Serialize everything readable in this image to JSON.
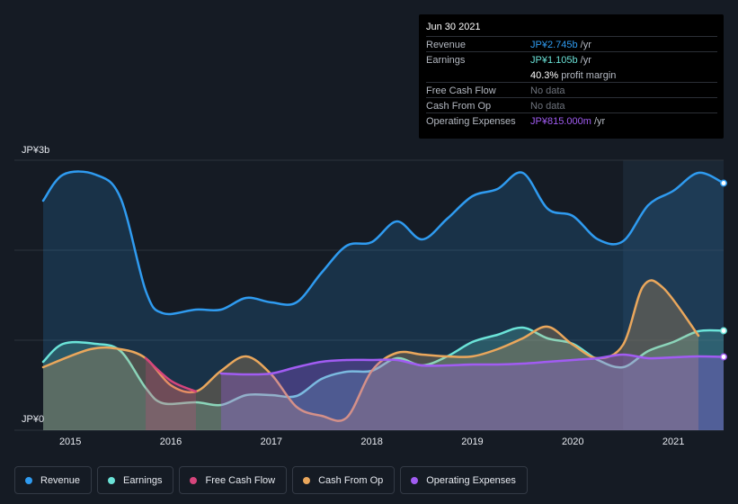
{
  "tooltip": {
    "date": "Jun 30 2021",
    "rows": [
      {
        "label": "Revenue",
        "value": "JP¥2.745b",
        "unit": "/yr",
        "color": "#2f9bf0"
      },
      {
        "label": "Earnings",
        "value": "JP¥1.105b",
        "unit": "/yr",
        "color": "#6be3d8"
      },
      {
        "label": "",
        "value": "40.3%",
        "unit": "profit margin",
        "color": "#ffffff"
      },
      {
        "label": "Free Cash Flow",
        "value": "No data",
        "unit": "",
        "color": "#6e737c"
      },
      {
        "label": "Cash From Op",
        "value": "No data",
        "unit": "",
        "color": "#6e737c"
      },
      {
        "label": "Operating Expenses",
        "value": "JP¥815.000m",
        "unit": "/yr",
        "color": "#a15cf2"
      }
    ]
  },
  "legend": [
    {
      "label": "Revenue",
      "color": "#2f9bf0"
    },
    {
      "label": "Earnings",
      "color": "#6be3d8"
    },
    {
      "label": "Free Cash Flow",
      "color": "#d6457c"
    },
    {
      "label": "Cash From Op",
      "color": "#eaa75c"
    },
    {
      "label": "Operating Expenses",
      "color": "#a15cf2"
    }
  ],
  "chart_data": {
    "type": "area",
    "title": "",
    "xlabel": "",
    "ylabel": "",
    "ylim": [
      0,
      3.0
    ],
    "xlim": [
      2014.73,
      2021.5
    ],
    "y_unit": "JP¥ billions",
    "y_tick_labels": [
      "JP¥0",
      "JP¥3b"
    ],
    "x_ticks": [
      2015,
      2016,
      2017,
      2018,
      2019,
      2020,
      2021
    ],
    "x_tick_labels": [
      "2015",
      "2016",
      "2017",
      "2018",
      "2019",
      "2020",
      "2021"
    ],
    "highlight_from": 2020.5,
    "series": [
      {
        "name": "Revenue",
        "color": "#2f9bf0",
        "x": [
          2014.73,
          2014.93,
          2015.25,
          2015.5,
          2015.75,
          2015.92,
          2016.25,
          2016.5,
          2016.75,
          2017.0,
          2017.25,
          2017.5,
          2017.75,
          2018.0,
          2018.25,
          2018.5,
          2018.75,
          2019.0,
          2019.25,
          2019.5,
          2019.75,
          2020.0,
          2020.25,
          2020.5,
          2020.75,
          2021.0,
          2021.25,
          2021.5
        ],
        "values": [
          2.55,
          2.84,
          2.84,
          2.58,
          1.55,
          1.3,
          1.34,
          1.34,
          1.47,
          1.42,
          1.42,
          1.75,
          2.05,
          2.09,
          2.32,
          2.12,
          2.35,
          2.6,
          2.68,
          2.86,
          2.46,
          2.38,
          2.12,
          2.1,
          2.5,
          2.66,
          2.86,
          2.745
        ]
      },
      {
        "name": "Earnings",
        "color": "#6be3d8",
        "x": [
          2014.73,
          2014.93,
          2015.25,
          2015.5,
          2015.75,
          2015.92,
          2016.25,
          2016.5,
          2016.75,
          2017.0,
          2017.25,
          2017.5,
          2017.75,
          2018.0,
          2018.25,
          2018.5,
          2018.75,
          2019.0,
          2019.25,
          2019.5,
          2019.75,
          2020.0,
          2020.25,
          2020.5,
          2020.75,
          2021.0,
          2021.25,
          2021.5
        ],
        "values": [
          0.76,
          0.96,
          0.96,
          0.88,
          0.47,
          0.3,
          0.31,
          0.28,
          0.39,
          0.39,
          0.38,
          0.57,
          0.65,
          0.66,
          0.8,
          0.72,
          0.82,
          0.98,
          1.06,
          1.14,
          1.02,
          0.96,
          0.78,
          0.7,
          0.88,
          0.98,
          1.1,
          1.105
        ]
      },
      {
        "name": "Cash From Op",
        "color": "#eaa75c",
        "x": [
          2014.73,
          2015.2,
          2015.5,
          2015.75,
          2016.0,
          2016.25,
          2016.5,
          2016.75,
          2017.0,
          2017.25,
          2017.5,
          2017.75,
          2018.0,
          2018.25,
          2018.5,
          2018.75,
          2019.0,
          2019.25,
          2019.5,
          2019.75,
          2020.0,
          2020.25,
          2020.5,
          2020.7,
          2020.9,
          2021.25
        ],
        "values": [
          0.7,
          0.9,
          0.9,
          0.8,
          0.5,
          0.43,
          0.66,
          0.82,
          0.62,
          0.26,
          0.16,
          0.14,
          0.66,
          0.86,
          0.84,
          0.82,
          0.82,
          0.9,
          1.02,
          1.15,
          0.95,
          0.8,
          0.95,
          1.6,
          1.58,
          1.05
        ]
      },
      {
        "name": "Free Cash Flow",
        "color": "#d6457c",
        "x": [
          2015.75,
          2016.0,
          2016.25
        ],
        "values": [
          0.8,
          0.55,
          0.43
        ]
      },
      {
        "name": "Operating Expenses",
        "color": "#a15cf2",
        "x": [
          2016.5,
          2016.75,
          2017.0,
          2017.25,
          2017.5,
          2017.75,
          2018.0,
          2018.25,
          2018.5,
          2018.75,
          2019.0,
          2019.25,
          2019.5,
          2019.75,
          2020.0,
          2020.25,
          2020.5,
          2020.75,
          2021.0,
          2021.25,
          2021.5
        ],
        "values": [
          0.63,
          0.62,
          0.63,
          0.7,
          0.76,
          0.78,
          0.78,
          0.78,
          0.72,
          0.72,
          0.73,
          0.73,
          0.74,
          0.76,
          0.78,
          0.8,
          0.84,
          0.8,
          0.81,
          0.82,
          0.815
        ]
      }
    ]
  }
}
